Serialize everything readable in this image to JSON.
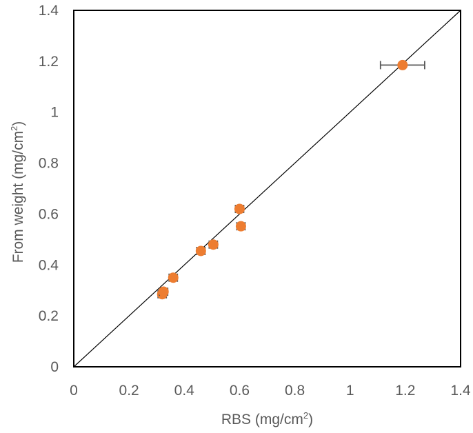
{
  "chart_data": {
    "type": "scatter",
    "xlabel_parts": [
      "RBS (mg/cm",
      "2",
      ")"
    ],
    "ylabel_parts": [
      "From weight (mg/cm",
      "2",
      ")"
    ],
    "xlim": [
      0,
      1.4
    ],
    "ylim": [
      0,
      1.4
    ],
    "xticks": [
      "0",
      "0.2",
      "0.4",
      "0.6",
      "0.8",
      "1",
      "1.2",
      "1.4"
    ],
    "yticks": [
      "0",
      "0.2",
      "0.4",
      "0.6",
      "0.8",
      "1",
      "1.2",
      "1.4"
    ],
    "grid": false,
    "legend": "none",
    "reference_line": {
      "x": [
        0,
        1.4
      ],
      "y": [
        0,
        1.4
      ]
    },
    "series": [
      {
        "points": [
          {
            "x": 0.32,
            "y": 0.285,
            "xerr": 0.015,
            "yerr": 0.01
          },
          {
            "x": 0.325,
            "y": 0.295,
            "xerr": 0.015,
            "yerr": 0.01
          },
          {
            "x": 0.36,
            "y": 0.35,
            "xerr": 0.015,
            "yerr": 0.01
          },
          {
            "x": 0.46,
            "y": 0.455,
            "xerr": 0.015,
            "yerr": 0.01
          },
          {
            "x": 0.505,
            "y": 0.48,
            "xerr": 0.015,
            "yerr": 0.01
          },
          {
            "x": 0.6,
            "y": 0.62,
            "xerr": 0.015,
            "yerr": 0.01
          },
          {
            "x": 0.605,
            "y": 0.552,
            "xerr": 0.015,
            "yerr": 0.01
          },
          {
            "x": 1.19,
            "y": 1.185,
            "xerr": 0.08,
            "yerr": 0.01
          }
        ]
      }
    ],
    "colors": {
      "marker": "#ED7D31",
      "error_bar": "#595959",
      "axis": "#000000",
      "reference_line": "#000000",
      "text": "#595959"
    }
  }
}
